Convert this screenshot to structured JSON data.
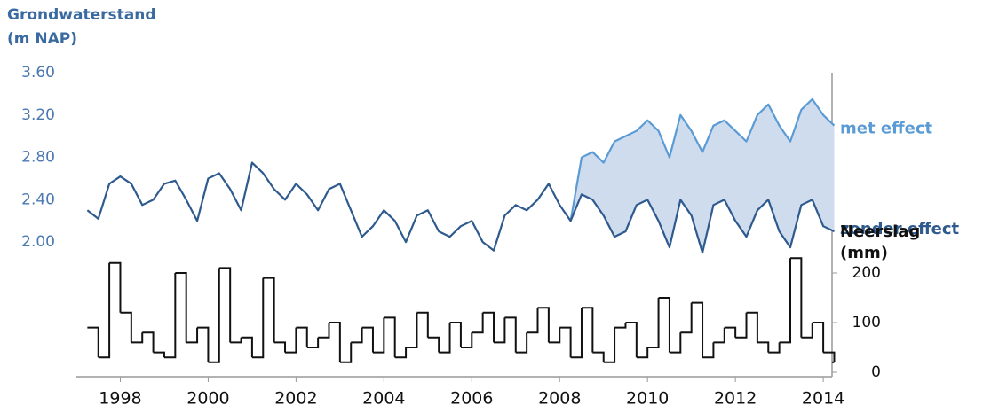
{
  "chart_data": [
    {
      "type": "line",
      "y_label": [
        "Grondwaterstand",
        "(m NAP)"
      ],
      "x": [
        1997.25,
        1997.5,
        1997.75,
        1998,
        1998.25,
        1998.5,
        1998.75,
        1999,
        1999.25,
        1999.5,
        1999.75,
        2000,
        2000.25,
        2000.5,
        2000.75,
        2001,
        2001.25,
        2001.5,
        2001.75,
        2002,
        2002.25,
        2002.5,
        2002.75,
        2003,
        2003.25,
        2003.5,
        2003.75,
        2004,
        2004.25,
        2004.5,
        2004.75,
        2005,
        2005.25,
        2005.5,
        2005.75,
        2006,
        2006.25,
        2006.5,
        2006.75,
        2007,
        2007.25,
        2007.5,
        2007.75,
        2008,
        2008.25,
        2008.5,
        2008.75,
        2009,
        2009.25,
        2009.5,
        2009.75,
        2010,
        2010.25,
        2010.5,
        2010.75,
        2011,
        2011.25,
        2011.5,
        2011.75,
        2012,
        2012.25,
        2012.5,
        2012.75,
        2013,
        2013.25,
        2013.5,
        2013.75,
        2014,
        2014.25
      ],
      "series": [
        {
          "name": "met effect",
          "color": "#5b9bd5",
          "values": [
            null,
            null,
            null,
            null,
            null,
            null,
            null,
            null,
            null,
            null,
            null,
            null,
            null,
            null,
            null,
            null,
            null,
            null,
            null,
            null,
            null,
            null,
            null,
            null,
            null,
            null,
            null,
            null,
            null,
            null,
            null,
            null,
            null,
            null,
            null,
            null,
            null,
            null,
            null,
            null,
            null,
            null,
            null,
            null,
            2.2,
            2.8,
            2.85,
            2.75,
            2.95,
            3.0,
            3.05,
            3.15,
            3.05,
            2.8,
            3.2,
            3.05,
            2.85,
            3.1,
            3.15,
            3.05,
            2.95,
            3.2,
            3.3,
            3.1,
            2.95,
            3.25,
            3.35,
            3.2,
            3.1
          ]
        },
        {
          "name": "zonder effect",
          "color": "#2e5a8e",
          "values": [
            2.3,
            2.22,
            2.55,
            2.62,
            2.55,
            2.35,
            2.4,
            2.55,
            2.58,
            2.4,
            2.2,
            2.6,
            2.65,
            2.5,
            2.3,
            2.75,
            2.65,
            2.5,
            2.4,
            2.55,
            2.45,
            2.3,
            2.5,
            2.55,
            2.3,
            2.05,
            2.15,
            2.3,
            2.2,
            2.0,
            2.25,
            2.3,
            2.1,
            2.05,
            2.15,
            2.2,
            2.0,
            1.92,
            2.25,
            2.35,
            2.3,
            2.4,
            2.55,
            2.35,
            2.2,
            2.45,
            2.4,
            2.25,
            2.05,
            2.1,
            2.35,
            2.4,
            2.2,
            1.95,
            2.4,
            2.25,
            1.9,
            2.35,
            2.4,
            2.2,
            2.05,
            2.3,
            2.4,
            2.1,
            1.95,
            2.35,
            2.4,
            2.15,
            2.1
          ]
        }
      ],
      "band_color": "#cfdcee",
      "xlim": [
        1997,
        2014.2
      ],
      "ylim": [
        1.8,
        3.6
      ],
      "yticks": [
        {
          "value": 2,
          "label": "2.00"
        },
        {
          "value": 2.4,
          "label": "2.40"
        },
        {
          "value": 2.8,
          "label": "2.80"
        },
        {
          "value": 3.2,
          "label": "3.20"
        },
        {
          "value": 3.6,
          "label": "3.60"
        }
      ]
    },
    {
      "type": "step",
      "y_label": [
        "Neerslag",
        "(mm)"
      ],
      "x": [
        1997.25,
        1997.5,
        1997.75,
        1998,
        1998.25,
        1998.5,
        1998.75,
        1999,
        1999.25,
        1999.5,
        1999.75,
        2000,
        2000.25,
        2000.5,
        2000.75,
        2001,
        2001.25,
        2001.5,
        2001.75,
        2002,
        2002.25,
        2002.5,
        2002.75,
        2003,
        2003.25,
        2003.5,
        2003.75,
        2004,
        2004.25,
        2004.5,
        2004.75,
        2005,
        2005.25,
        2005.5,
        2005.75,
        2006,
        2006.25,
        2006.5,
        2006.75,
        2007,
        2007.25,
        2007.5,
        2007.75,
        2008,
        2008.25,
        2008.5,
        2008.75,
        2009,
        2009.25,
        2009.5,
        2009.75,
        2010,
        2010.25,
        2010.5,
        2010.75,
        2011,
        2011.25,
        2011.5,
        2011.75,
        2012,
        2012.25,
        2012.5,
        2012.75,
        2013,
        2013.25,
        2013.5,
        2013.75,
        2014,
        2014.25
      ],
      "values": [
        90,
        30,
        220,
        120,
        60,
        80,
        40,
        30,
        200,
        60,
        90,
        20,
        210,
        60,
        70,
        30,
        190,
        60,
        40,
        90,
        50,
        70,
        100,
        20,
        60,
        90,
        40,
        110,
        30,
        50,
        120,
        70,
        40,
        100,
        50,
        80,
        120,
        60,
        110,
        40,
        80,
        130,
        60,
        90,
        30,
        130,
        40,
        20,
        90,
        100,
        30,
        50,
        150,
        40,
        80,
        140,
        30,
        60,
        90,
        70,
        120,
        60,
        40,
        60,
        230,
        70,
        100,
        40,
        20
      ],
      "color": "#111111",
      "xlim": [
        1997,
        2014.2
      ],
      "ylim": [
        0,
        230
      ],
      "yticks": [
        0,
        100,
        200
      ],
      "xticks": [
        1998,
        2000,
        2002,
        2004,
        2006,
        2008,
        2010,
        2012,
        2014
      ]
    }
  ]
}
